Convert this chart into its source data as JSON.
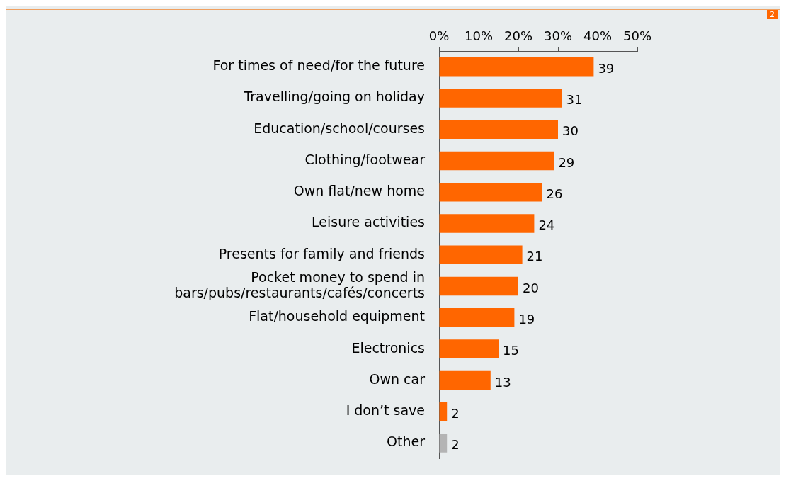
{
  "chart_data": {
    "type": "bar",
    "orientation": "horizontal",
    "categories": [
      "For times of need/for the future",
      "Travelling/going on holiday",
      "Education/school/courses",
      "Clothing/footwear",
      "Own flat/new home",
      "Leisure activities",
      "Presents for family and friends",
      "Pocket money to spend in bars/pubs/restaurants/cafés/concerts",
      "Flat/household equipment",
      "Electronics",
      "Own car",
      "I don’t save",
      "Other"
    ],
    "values": [
      39,
      31,
      30,
      29,
      26,
      24,
      21,
      20,
      19,
      15,
      13,
      2,
      2
    ],
    "colors": [
      "#ff6600",
      "#ff6600",
      "#ff6600",
      "#ff6600",
      "#ff6600",
      "#ff6600",
      "#ff6600",
      "#ff6600",
      "#ff6600",
      "#ff6600",
      "#ff6600",
      "#ff6600",
      "#b4b4b4"
    ],
    "xlim": [
      0,
      50
    ],
    "xticks": [
      {
        "value": 0,
        "label": "0%"
      },
      {
        "value": 10,
        "label": "10%"
      },
      {
        "value": 20,
        "label": "20%"
      },
      {
        "value": 30,
        "label": "30%"
      },
      {
        "value": 40,
        "label": "40%"
      },
      {
        "value": 50,
        "label": "50%"
      }
    ],
    "data_labels": true,
    "grid": false,
    "legend": false,
    "annotations": [
      "2"
    ]
  }
}
